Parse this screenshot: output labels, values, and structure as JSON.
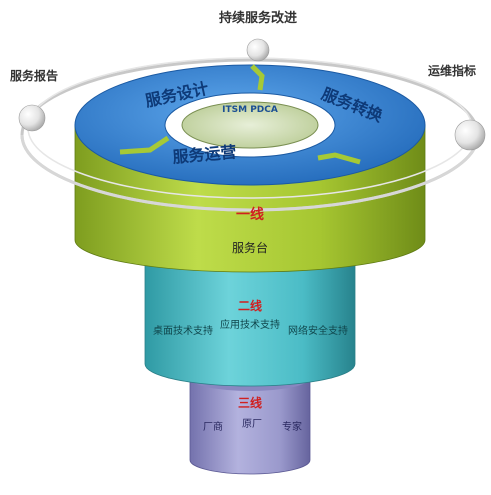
{
  "orbit_labels": {
    "top": "持续服务改进",
    "left": "服务报告",
    "right": "运维指标"
  },
  "top_ring": {
    "segments": {
      "upper_left": "服务设计",
      "right": "服务转换",
      "lower_left": "服务运营"
    },
    "inner_text": "ITSM PDCA"
  },
  "level1": {
    "title": "一线",
    "desc": "服务台"
  },
  "level2": {
    "title": "二线",
    "items": [
      "桌面技术支持",
      "应用技术支持",
      "网络安全支持"
    ]
  },
  "level3": {
    "title": "三线",
    "items": [
      "厂商",
      "原厂",
      "专家"
    ]
  },
  "colors": {
    "ring_blue": "#2f7fd1",
    "level1_green": "#a4c72f",
    "level2_teal": "#4fc1c9",
    "level3_purple": "#8f8ec4",
    "title_red": "#d02020"
  }
}
